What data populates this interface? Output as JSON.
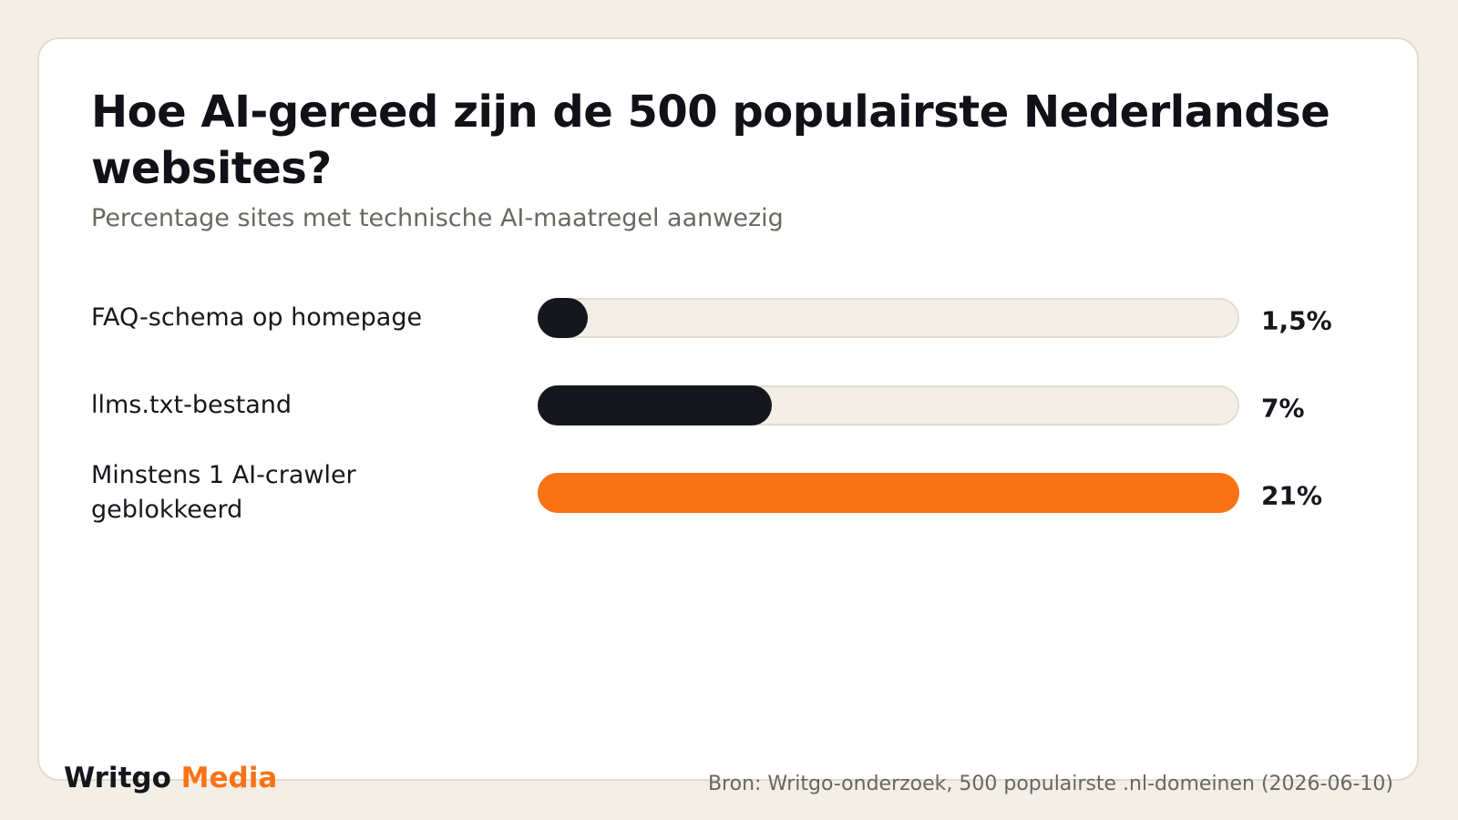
{
  "chart_data": {
    "type": "bar",
    "orientation": "horizontal",
    "title": "Hoe AI-gereed zijn de 500 populairste Nederlandse websites?",
    "subtitle": "Percentage sites met technische AI-maatregel aanwezig",
    "categories": [
      "FAQ-schema op homepage",
      "llms.txt-bestand",
      "Minstens 1 AI-crawler geblokkeerd"
    ],
    "values": [
      1.5,
      7,
      21
    ],
    "value_labels": [
      "1,5%",
      "7%",
      "21%"
    ],
    "colors": [
      "#16171d",
      "#16171d",
      "#f97316"
    ],
    "track_color": "#f3efe7",
    "xlim": [
      0,
      21
    ]
  },
  "footer": {
    "brand": {
      "name": "Writgo",
      "accent": "Media",
      "accent_color": "#f97316"
    },
    "source": "Bron: Writgo-onderzoek, 500 populairste .nl-domeinen (2026-06-10)"
  }
}
